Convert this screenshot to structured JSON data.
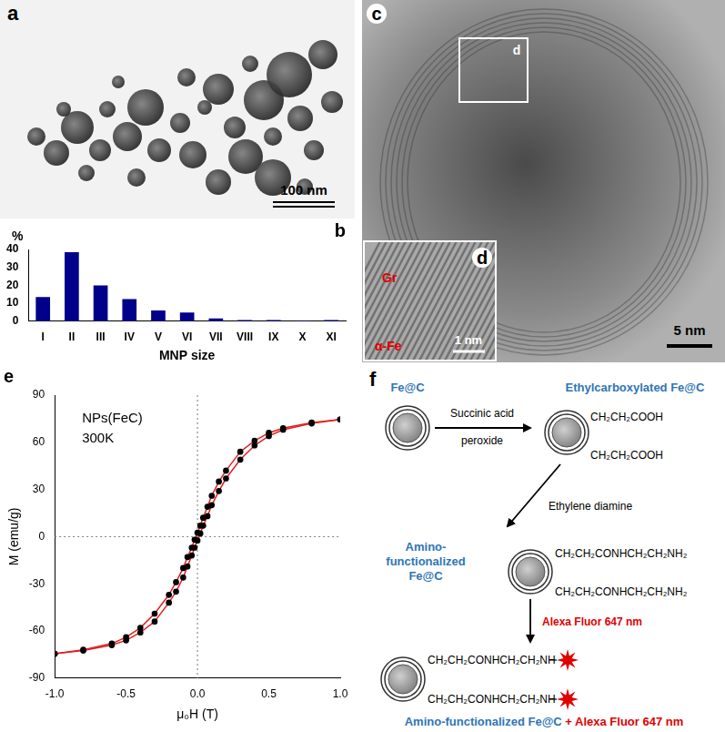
{
  "figure": {
    "a": {
      "label": "a",
      "scale_bar": "100 nm"
    },
    "c": {
      "label": "c",
      "scale_bar": "5 nm",
      "box_label": "d"
    },
    "d": {
      "label": "d",
      "scale_bar": "1 nm",
      "annotations": [
        "Gr",
        "α-Fe"
      ]
    },
    "f": {
      "label": "f",
      "nodes": [
        {
          "title": [
            "Fe@C"
          ],
          "groups": []
        },
        {
          "title": [
            "Ethylcarboxylated Fe@C"
          ],
          "groups": [
            "CH₂CH₂COOH",
            "CH₂CH₂COOH"
          ]
        },
        {
          "title": [
            "Amino-",
            "functionalized",
            "Fe@C"
          ],
          "groups": [
            "CH₂CH₂CONHCH₂CH₂NH₂",
            "CH₂CH₂CONHCH₂CH₂NH₂"
          ]
        },
        {
          "title": [
            "Amino-functionalized Fe@C",
            "+ Alexa Fluor 647 nm"
          ],
          "groups": [
            "CH₂CH₂CONHCH₂CH₂NH",
            "CH₂CH₂CONHCH₂CH₂NH"
          ]
        }
      ],
      "arrows": [
        {
          "label": [
            "Succinic acid",
            "peroxide"
          ]
        },
        {
          "label": [
            "Ethylene diamine"
          ]
        },
        {
          "label": [
            "Alexa Fluor 647 nm"
          ]
        }
      ]
    }
  },
  "chart_data": [
    {
      "type": "bar",
      "title": "b",
      "categories": [
        "I",
        "II",
        "III",
        "IV",
        "V",
        "VI",
        "VII",
        "VIII",
        "IX",
        "X",
        "XI"
      ],
      "values": [
        13.5,
        38.5,
        20,
        12.3,
        6,
        4.8,
        1.5,
        0.6,
        0.6,
        0.3,
        0.6
      ],
      "color": "#00008b",
      "x_label": "MNP size",
      "y_label": "%",
      "ylim": [
        0,
        40
      ],
      "yticks": [
        0,
        10,
        20,
        30,
        40
      ],
      "grid": false
    },
    {
      "type": "line",
      "title": "e",
      "annotations": [
        "NPs(FeC)",
        "300K"
      ],
      "x_label": "μ₀H (T)",
      "y_label": "M (emu/g)",
      "xlim": [
        -1,
        1
      ],
      "xticks": [
        {
          "value": -1,
          "label": "-1.0"
        },
        {
          "value": -0.5,
          "label": "-0.5"
        },
        {
          "value": 0,
          "label": "0.0"
        },
        {
          "value": 0.5,
          "label": "0.5"
        },
        {
          "value": 1,
          "label": "1.0"
        }
      ],
      "ylim": [
        -90,
        90
      ],
      "yticks": [
        -90,
        -60,
        -30,
        0,
        30,
        60,
        90
      ],
      "grid": false,
      "series": [
        {
          "color": "#e02020",
          "marker": "circle",
          "line_style": "solid",
          "x": [
            1.0,
            0.8,
            0.6,
            0.5,
            0.4,
            0.3,
            0.2,
            0.15,
            0.1,
            0.07,
            0.04,
            0.02,
            0,
            -0.02,
            -0.04,
            -0.07,
            -0.1,
            -0.15,
            -0.2,
            -0.3,
            -0.4,
            -0.5,
            -0.6,
            -0.8,
            -1.0
          ],
          "values": [
            74.5,
            72.5,
            69,
            66,
            61,
            54,
            42,
            35,
            26,
            19,
            12,
            7,
            2.5,
            -2,
            -7,
            -13,
            -20,
            -29,
            -37,
            -49,
            -58,
            -64,
            -68,
            -72,
            -74.5
          ]
        },
        {
          "color": "#e02020",
          "marker": "circle",
          "line_style": "solid",
          "x": [
            -1.0,
            -0.8,
            -0.6,
            -0.5,
            -0.4,
            -0.3,
            -0.2,
            -0.15,
            -0.1,
            -0.07,
            -0.04,
            -0.02,
            0,
            0.02,
            0.04,
            0.07,
            0.1,
            0.15,
            0.2,
            0.3,
            0.4,
            0.5,
            0.6,
            0.8,
            1.0
          ],
          "values": [
            -74.5,
            -72.5,
            -69,
            -66,
            -61,
            -54,
            -42,
            -35,
            -26,
            -19,
            -12,
            -7,
            -2.5,
            2,
            7,
            13,
            20,
            29,
            37,
            49,
            58,
            64,
            68,
            72,
            74.5
          ]
        }
      ]
    }
  ]
}
